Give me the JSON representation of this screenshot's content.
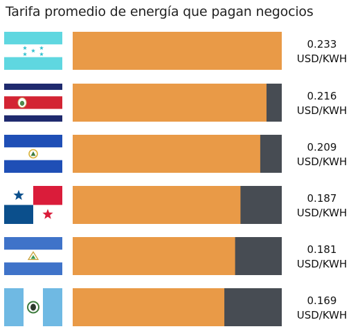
{
  "chart_data": {
    "type": "bar",
    "orientation": "horizontal",
    "title": "Tarifa promedio de energía que pagan negocios",
    "xlim": [
      0,
      0.233
    ],
    "value_unit": "USD/KWH",
    "colors": {
      "bar": "#e99a47",
      "track": "#474c53"
    },
    "categories": [
      "Honduras",
      "Costa Rica",
      "El Salvador",
      "Panamá",
      "Nicaragua",
      "Guatemala"
    ],
    "flag_icons": [
      "honduras-flag-icon",
      "costa-rica-flag-icon",
      "el-salvador-flag-icon",
      "panama-flag-icon",
      "nicaragua-flag-icon",
      "guatemala-flag-icon"
    ],
    "values": [
      0.233,
      0.216,
      0.209,
      0.187,
      0.181,
      0.169
    ],
    "value_labels": [
      "0.233",
      "0.216",
      "0.209",
      "0.187",
      "0.181",
      "0.169"
    ],
    "grid": false,
    "legend": "none"
  }
}
